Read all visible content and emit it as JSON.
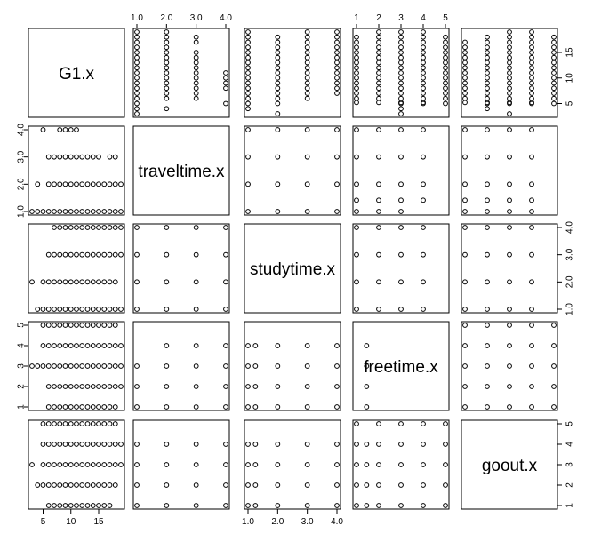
{
  "chart_data": {
    "type": "scatter",
    "title": "",
    "variables": [
      {
        "name": "G1.x",
        "lim": [
          3,
          19
        ],
        "ticks": [
          5,
          10,
          15
        ]
      },
      {
        "name": "traveltime.x",
        "lim": [
          1,
          4
        ],
        "ticks": [
          "1.0",
          "2.0",
          "3.0",
          "4.0"
        ]
      },
      {
        "name": "studytime.x",
        "lim": [
          1,
          4
        ],
        "ticks": [
          "1.0",
          "2.0",
          "3.0",
          "4.0"
        ]
      },
      {
        "name": "freetime.x",
        "lim": [
          1,
          5
        ],
        "ticks": [
          1,
          2,
          3,
          4,
          5
        ]
      },
      {
        "name": "goout.x",
        "lim": [
          1,
          5
        ],
        "ticks": [
          1,
          2,
          3,
          4,
          5
        ]
      }
    ],
    "axis_sides": {
      "top": [
        1,
        3
      ],
      "bottom": [
        0,
        2
      ],
      "left": [
        1,
        3
      ],
      "right": [
        0,
        2,
        4
      ]
    },
    "grid": false,
    "legend": "none",
    "point_style": "open-circle",
    "point_color": "#000000",
    "values": {
      "G1.x": [
        3,
        4,
        5,
        6,
        7,
        8,
        9,
        10,
        11,
        12,
        13,
        14,
        15,
        16,
        17,
        18,
        19
      ],
      "traveltime.x": [
        1,
        2,
        3,
        4
      ],
      "studytime.x": [
        1,
        2,
        3,
        4
      ],
      "freetime.x": [
        1,
        2,
        3,
        4,
        5
      ],
      "goout.x": [
        1,
        2,
        3,
        4,
        5
      ]
    },
    "pairs": {
      "G1.x|traveltime.x": {
        "1": [
          3,
          4,
          5,
          6,
          7,
          8,
          9,
          10,
          11,
          12,
          13,
          14,
          15,
          16,
          17,
          18,
          19
        ],
        "2": [
          4,
          6,
          7,
          8,
          9,
          10,
          11,
          12,
          13,
          14,
          15,
          16,
          17,
          18,
          19
        ],
        "3": [
          6,
          7,
          8,
          9,
          10,
          11,
          12,
          13,
          14,
          15,
          17,
          18
        ],
        "4": [
          5,
          8,
          9,
          10,
          11
        ]
      },
      "G1.x|studytime.x": {
        "1": [
          4,
          5,
          6,
          7,
          8,
          9,
          10,
          11,
          12,
          13,
          14,
          15,
          16,
          17,
          18,
          19
        ],
        "2": [
          3,
          5,
          6,
          7,
          8,
          9,
          10,
          11,
          12,
          13,
          14,
          15,
          16,
          17,
          18
        ],
        "3": [
          6,
          7,
          8,
          9,
          10,
          11,
          12,
          13,
          14,
          15,
          16,
          17,
          18,
          19
        ],
        "4": [
          7,
          8,
          9,
          10,
          11,
          12,
          13,
          14,
          15,
          16,
          17,
          18,
          19
        ]
      },
      "G1.x|freetime.x": {
        "1": [
          6,
          7,
          8,
          9,
          10,
          11,
          12,
          13,
          14,
          15,
          16,
          17,
          18
        ],
        "2": [
          6,
          7,
          8,
          9,
          10,
          11,
          12,
          13,
          14,
          15,
          16,
          17,
          18,
          19
        ],
        "3": [
          3,
          4,
          5,
          6,
          7,
          8,
          9,
          10,
          11,
          12,
          13,
          14,
          15,
          16,
          17,
          18,
          19
        ],
        "4": [
          5,
          6,
          7,
          8,
          9,
          10,
          11,
          12,
          13,
          14,
          15,
          16,
          17,
          18,
          19
        ],
        "5": [
          5,
          6,
          7,
          8,
          9,
          10,
          11,
          12,
          13,
          14,
          15,
          16,
          17,
          18
        ]
      },
      "G1.x|goout.x": {
        "1": [
          6,
          7,
          8,
          9,
          10,
          11,
          12,
          13,
          14,
          15,
          16,
          17
        ],
        "2": [
          4,
          5,
          6,
          7,
          8,
          9,
          10,
          11,
          12,
          13,
          14,
          15,
          16,
          17,
          18
        ],
        "3": [
          3,
          5,
          6,
          7,
          8,
          9,
          10,
          11,
          12,
          13,
          14,
          15,
          16,
          17,
          18,
          19
        ],
        "4": [
          5,
          6,
          7,
          8,
          9,
          10,
          11,
          12,
          13,
          14,
          15,
          16,
          17,
          18,
          19
        ],
        "5": [
          5,
          6,
          7,
          8,
          9,
          10,
          11,
          12,
          13,
          14,
          15,
          16,
          17,
          18
        ]
      },
      "traveltime.x|studytime.x": {
        "1": [
          1,
          2,
          3,
          4
        ],
        "2": [
          1,
          2,
          3,
          4
        ],
        "3": [
          1,
          2,
          3,
          4
        ],
        "4": [
          1,
          2,
          3,
          4
        ]
      },
      "traveltime.x|freetime.x": {
        "1": [
          1,
          2,
          3,
          4,
          5
        ],
        "2": [
          1,
          2,
          3,
          4,
          5
        ],
        "3": [
          1,
          2,
          3,
          4,
          5
        ],
        "4": [
          2,
          3,
          4,
          5
        ]
      },
      "traveltime.x|goout.x": {
        "1": [
          1,
          2,
          3,
          4,
          5
        ],
        "2": [
          1,
          2,
          3,
          4,
          5
        ],
        "3": [
          1,
          2,
          3,
          4,
          5
        ],
        "4": [
          1,
          2,
          3,
          4,
          5
        ]
      },
      "studytime.x|freetime.x": {
        "1": [
          1,
          2,
          3,
          4,
          5
        ],
        "2": [
          1,
          2,
          3,
          4,
          5
        ],
        "3": [
          1,
          2,
          3,
          4,
          5
        ],
        "4": [
          1,
          2,
          3,
          4,
          5
        ]
      },
      "studytime.x|goout.x": {
        "1": [
          1,
          2,
          3,
          4,
          5
        ],
        "2": [
          1,
          2,
          3,
          4,
          5
        ],
        "3": [
          1,
          2,
          3,
          4,
          5
        ],
        "4": [
          1,
          2,
          3,
          4,
          5
        ]
      },
      "freetime.x|goout.x": {
        "1": [
          1,
          2,
          3,
          4,
          5
        ],
        "2": [
          1,
          2,
          3,
          4,
          5
        ],
        "3": [
          1,
          2,
          3,
          4,
          5
        ],
        "4": [
          1,
          2,
          3,
          4,
          5
        ],
        "5": [
          1,
          2,
          3,
          4,
          5
        ]
      }
    }
  }
}
